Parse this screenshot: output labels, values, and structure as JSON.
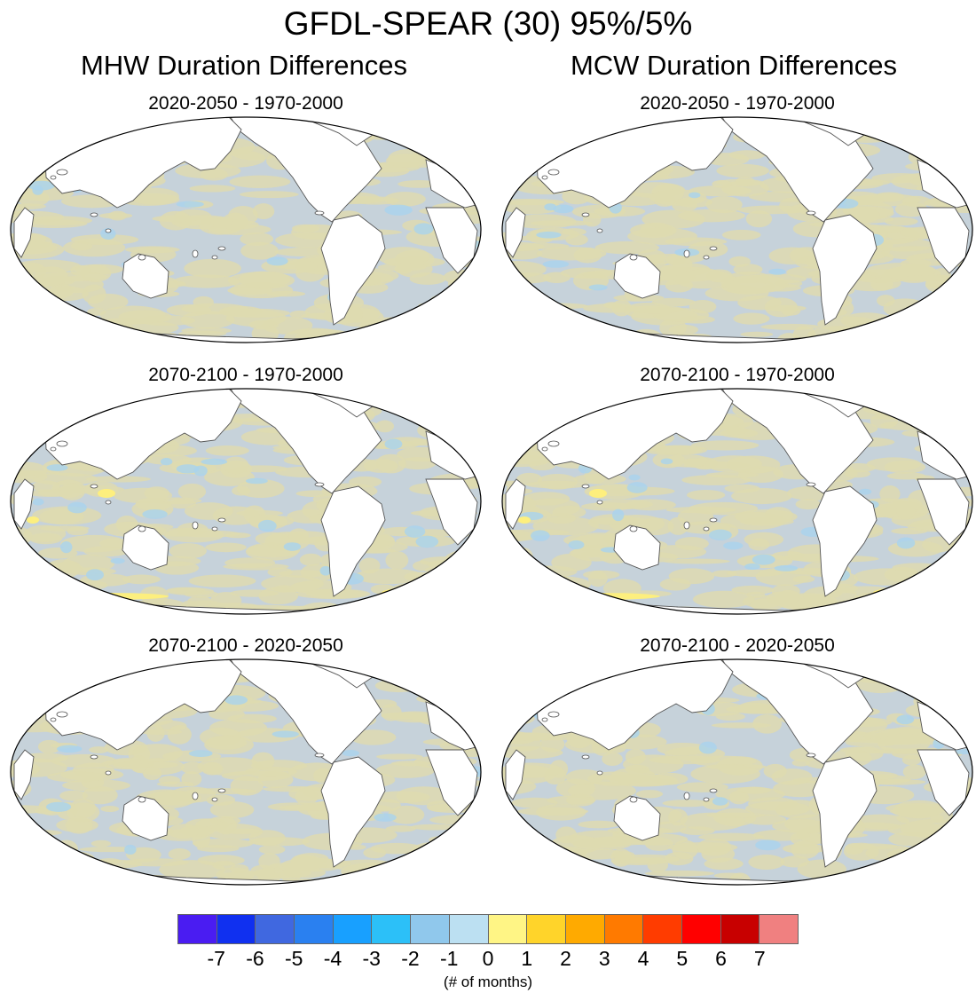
{
  "title": "GFDL-SPEAR (30) 95%/5%",
  "columns": [
    {
      "title": "MHW Duration Differences",
      "panels": [
        {
          "label": "2020-2050 - 1970-2000",
          "tint": "mild"
        },
        {
          "label": "2070-2100 - 1970-2000",
          "tint": "strong"
        },
        {
          "label": "2070-2100 - 2020-2050",
          "tint": "mild"
        }
      ]
    },
    {
      "title": "MCW Duration Differences",
      "panels": [
        {
          "label": "2020-2050 - 1970-2000",
          "tint": "mild"
        },
        {
          "label": "2070-2100 - 1970-2000",
          "tint": "strong"
        },
        {
          "label": "2070-2100 - 2020-2050",
          "tint": "mild"
        }
      ]
    }
  ],
  "map_colors": {
    "ocean_gray_blue": "#c6d2da",
    "ocean_khaki": "#dedbb0",
    "light_blue": "#a9d3ee",
    "yellow": "#fff07a",
    "land": "#ffffff",
    "coast": "#555555"
  },
  "colorbar": {
    "colors": [
      "#4a1cf2",
      "#1030f0",
      "#4068e0",
      "#2a80f0",
      "#18a0ff",
      "#2cc0f8",
      "#90c8ec",
      "#bce0f2",
      "#fff585",
      "#ffd42a",
      "#ffaa00",
      "#ff7a00",
      "#ff3c00",
      "#ff0000",
      "#c80000",
      "#f08080"
    ],
    "ticks": [
      "-7",
      "-6",
      "-5",
      "-4",
      "-3",
      "-2",
      "-1",
      "0",
      "1",
      "2",
      "3",
      "4",
      "5",
      "6",
      "7"
    ],
    "unit": "(# of months)"
  }
}
